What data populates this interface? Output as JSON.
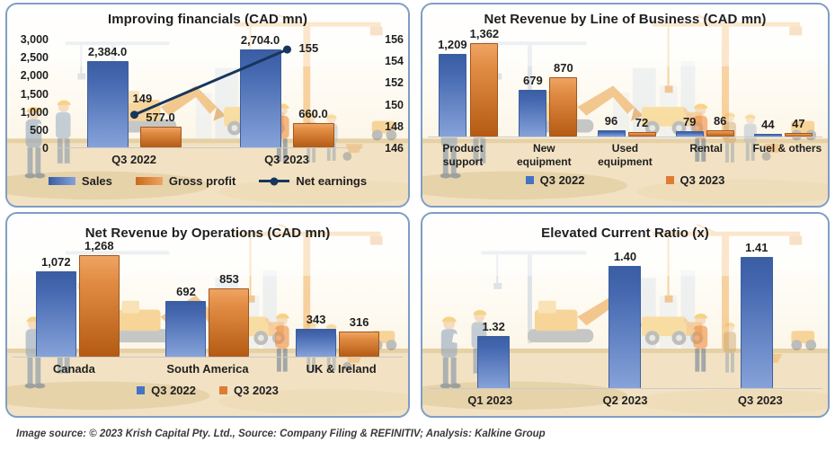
{
  "footer": {
    "text": "Image source: © 2023 Krish Capital Pty. Ltd., Source: Company Filing & REFINITIV; Analysis: Kalkine Group"
  },
  "colors": {
    "bar_blue": "#4472c4",
    "bar_blue_gradient_bottom": "#86a2d9",
    "bar_orange": "#e07b35",
    "bar_orange_gradient_bottom": "#b45a13",
    "line_navy": "#17365d",
    "panel_border": "#7f9dc4",
    "axis_text": "#1f1f1f",
    "baseline": "#c9c9c9",
    "ground": "#f2e2c3"
  },
  "chart_data": [
    {
      "type": "bar",
      "subtype": "bar+line dual axis",
      "title": "Improving financials (CAD mn)",
      "categories": [
        "Q3 2022",
        "Q3 2023"
      ],
      "series": [
        {
          "name": "Sales",
          "kind": "bar",
          "color": "blue",
          "axis": "left",
          "values": [
            2384.0,
            2704.0
          ],
          "labels": [
            "2,384.0",
            "2,704.0"
          ]
        },
        {
          "name": "Gross profit",
          "kind": "bar",
          "color": "orange",
          "axis": "left",
          "values": [
            577.0,
            660.0
          ],
          "labels": [
            "577.0",
            "660.0"
          ]
        },
        {
          "name": "Net earnings",
          "kind": "line",
          "color": "navy",
          "axis": "right",
          "values": [
            149,
            155
          ],
          "labels": [
            "149",
            "155"
          ]
        }
      ],
      "left_axis": {
        "min": 0,
        "max": 3000,
        "ticks": [
          "3,000",
          "2,500",
          "2,000",
          "1,500",
          "1,000",
          "500",
          "0"
        ]
      },
      "right_axis": {
        "min": 146,
        "max": 156,
        "ticks": [
          "156",
          "154",
          "152",
          "150",
          "148",
          "146"
        ]
      },
      "legend": [
        {
          "label": "Sales",
          "marker": "bar-blue"
        },
        {
          "label": "Gross profit",
          "marker": "bar-orange"
        },
        {
          "label": "Net earnings",
          "marker": "line-navy"
        }
      ],
      "grid": false,
      "legend_position": "bottom"
    },
    {
      "type": "bar",
      "title": "Net Revenue by Line of Business (CAD mn)",
      "categories": [
        "Product support",
        "New equipment",
        "Used equipment",
        "Rental",
        "Fuel & others"
      ],
      "series": [
        {
          "name": "Q3 2022",
          "kind": "bar",
          "color": "blue",
          "values": [
            1209,
            679,
            96,
            79,
            44
          ],
          "labels": [
            "1,209",
            "679",
            "96",
            "79",
            "44"
          ]
        },
        {
          "name": "Q3 2023",
          "kind": "bar",
          "color": "orange",
          "values": [
            1362,
            870,
            72,
            86,
            47
          ],
          "labels": [
            "1,362",
            "870",
            "72",
            "86",
            "47"
          ]
        }
      ],
      "ylim": [
        0,
        1362
      ],
      "legend": [
        {
          "label": "Q3 2022",
          "marker": "square-blue"
        },
        {
          "label": "Q3 2023",
          "marker": "square-orange"
        }
      ],
      "grid": false,
      "legend_position": "bottom"
    },
    {
      "type": "bar",
      "title": "Net Revenue by Operations (CAD mn)",
      "categories": [
        "Canada",
        "South America",
        "UK & Ireland"
      ],
      "series": [
        {
          "name": "Q3 2022",
          "kind": "bar",
          "color": "blue",
          "values": [
            1072,
            692,
            343
          ],
          "labels": [
            "1,072",
            "692",
            "343"
          ]
        },
        {
          "name": "Q3 2023",
          "kind": "bar",
          "color": "orange",
          "values": [
            1268,
            853,
            316
          ],
          "labels": [
            "1,268",
            "853",
            "316"
          ]
        }
      ],
      "ylim": [
        0,
        1268
      ],
      "legend": [
        {
          "label": "Q3 2022",
          "marker": "square-blue"
        },
        {
          "label": "Q3 2023",
          "marker": "square-orange"
        }
      ],
      "grid": false,
      "legend_position": "bottom"
    },
    {
      "type": "bar",
      "title": "Elevated Current Ratio (x)",
      "categories": [
        "Q1 2023",
        "Q2 2023",
        "Q3 2023"
      ],
      "series": [
        {
          "name": "Current ratio",
          "kind": "bar",
          "color": "blue",
          "values": [
            1.32,
            1.4,
            1.41
          ],
          "labels": [
            "1.32",
            "1.40",
            "1.41"
          ]
        }
      ],
      "ylim": [
        1.26,
        1.45
      ],
      "legend": [],
      "grid": false
    }
  ]
}
